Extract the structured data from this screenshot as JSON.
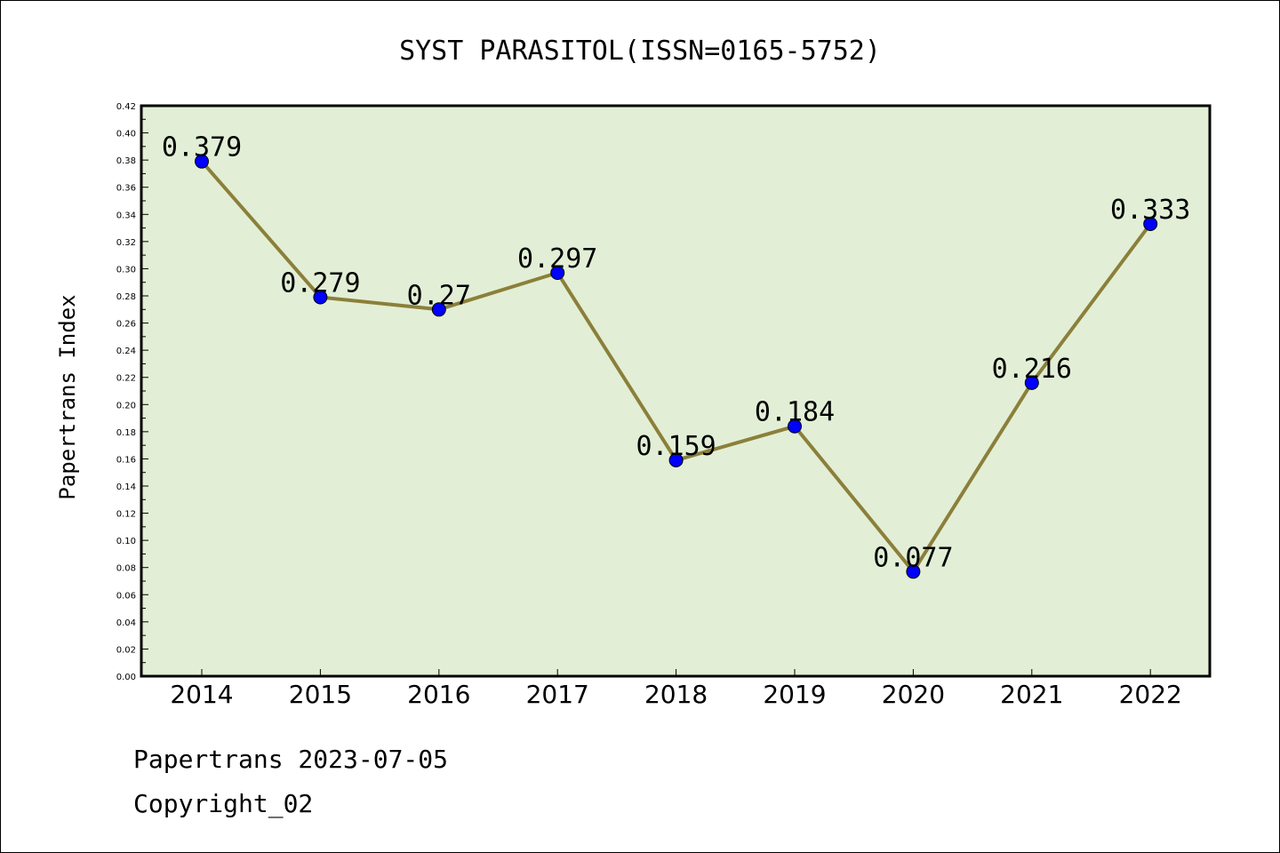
{
  "chart_data": {
    "type": "line",
    "title": "SYST PARASITOL(ISSN=0165-5752)",
    "xlabel": "",
    "ylabel": "Papertrans Index",
    "categories": [
      "2014",
      "2015",
      "2016",
      "2017",
      "2018",
      "2019",
      "2020",
      "2021",
      "2022"
    ],
    "values": [
      0.379,
      0.279,
      0.27,
      0.297,
      0.159,
      0.184,
      0.077,
      0.216,
      0.333
    ],
    "data_labels": [
      "0.379",
      "0.279",
      "0.27",
      "0.297",
      "0.159",
      "0.184",
      "0.077",
      "0.216",
      "0.333"
    ],
    "ylim": [
      0,
      0.42
    ],
    "yticks": [
      "0.00",
      "0.02",
      "0.04",
      "0.06",
      "0.08",
      "0.10",
      "0.12",
      "0.14",
      "0.16",
      "0.18",
      "0.20",
      "0.22",
      "0.24",
      "0.26",
      "0.28",
      "0.30",
      "0.32",
      "0.34",
      "0.36",
      "0.38",
      "0.40",
      "0.42"
    ],
    "grid": false,
    "colors": {
      "plot_background": "#e2efd6",
      "line": "#8b7f3a",
      "marker": "#0000ff"
    }
  },
  "footer": {
    "line1": "Papertrans 2023-07-05",
    "line2": "Copyright_02"
  }
}
